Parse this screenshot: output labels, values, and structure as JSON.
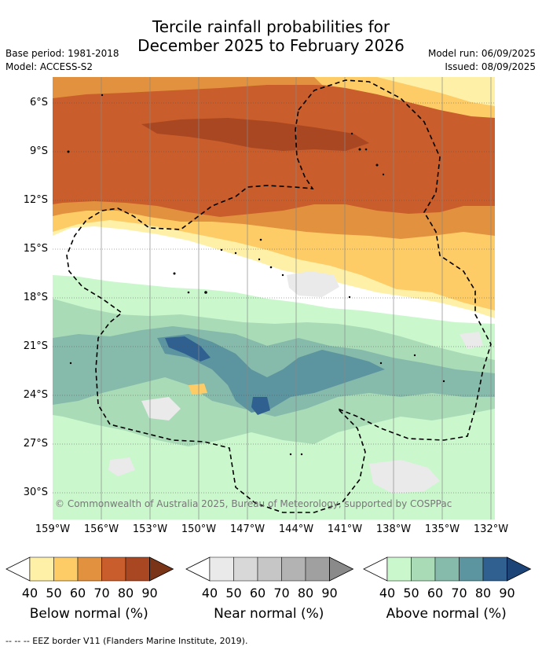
{
  "header": {
    "title_line1": "Tercile rainfall probabilities for",
    "title_line2": "December 2025 to February 2026",
    "base_period": "Base period: 1981-2018",
    "model": "Model: ACCESS-S2",
    "model_run": "Model run: 06/09/2025",
    "issued": "Issued: 08/09/2025"
  },
  "map": {
    "y_axis_labels": [
      "6°S",
      "9°S",
      "12°S",
      "15°S",
      "18°S",
      "21°S",
      "24°S",
      "27°S",
      "30°S"
    ],
    "x_axis_labels": [
      "159°W",
      "156°W",
      "153°W",
      "150°W",
      "147°W",
      "144°W",
      "141°W",
      "138°W",
      "135°W",
      "132°W"
    ],
    "copyright": "© Commonwealth of Australia 2025, Bureau of Meteorology, supported by COSPPac"
  },
  "legend": {
    "below": {
      "title": "Below normal (%)",
      "ticks": [
        "40",
        "50",
        "60",
        "70",
        "80",
        "90"
      ],
      "colors": [
        "#fff0a8",
        "#fdcc66",
        "#e2913e",
        "#c95d2b",
        "#a84722"
      ]
    },
    "near": {
      "title": "Near normal (%)",
      "ticks": [
        "40",
        "50",
        "60",
        "70",
        "80",
        "90"
      ],
      "colors": [
        "#eaeaea",
        "#d8d8d8",
        "#c6c6c6",
        "#b3b3b3",
        "#a0a0a0"
      ]
    },
    "above": {
      "title": "Above normal (%)",
      "ticks": [
        "40",
        "50",
        "60",
        "70",
        "80",
        "90"
      ],
      "colors": [
        "#caf7cc",
        "#a9dbb7",
        "#86baab",
        "#5c959f",
        "#2f6090"
      ]
    }
  },
  "footer": {
    "eez_note": "--  --  -- EEZ border V11 (Flanders Marine Institute, 2019)."
  }
}
